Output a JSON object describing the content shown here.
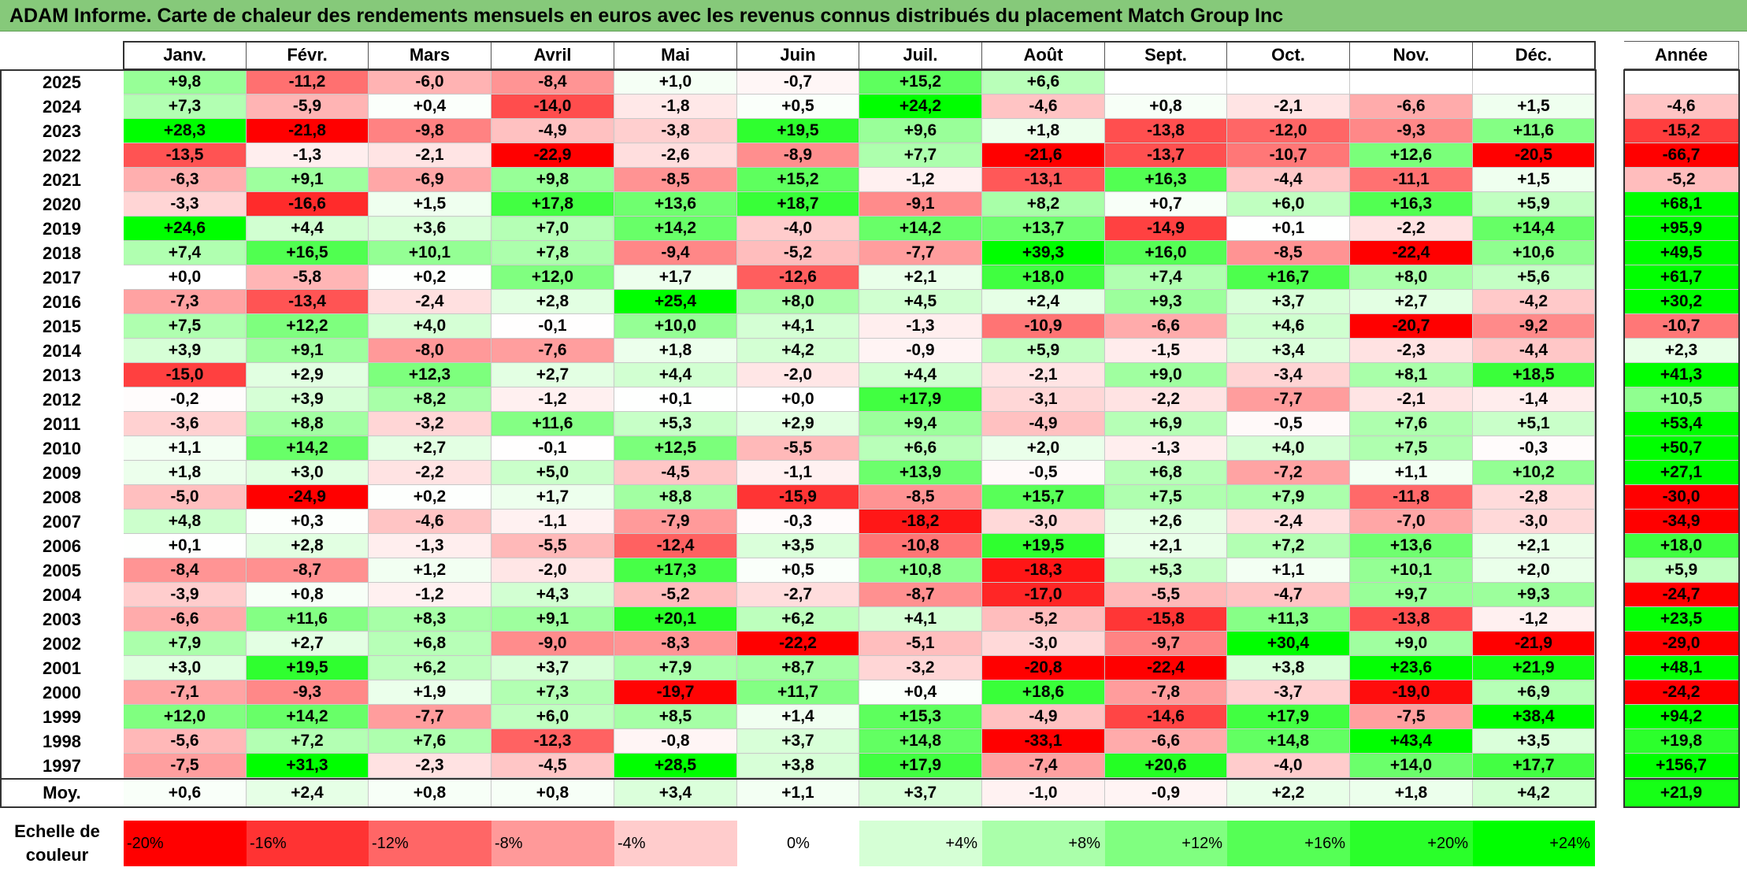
{
  "title": "ADAM Informe. Carte de chaleur des rendements mensuels en euros avec les revenus connus distribués du placement Match Group Inc",
  "chart_data": {
    "type": "heatmap",
    "months": [
      "Janv.",
      "Févr.",
      "Mars",
      "Avril",
      "Mai",
      "Juin",
      "Juil.",
      "Août",
      "Sept.",
      "Oct.",
      "Nov.",
      "Déc."
    ],
    "year_column_label": "Année",
    "average_row_label": "Moy.",
    "rows": [
      {
        "year": "2025",
        "values": [
          "+9,8",
          "-11,2",
          "-6,0",
          "-8,4",
          "+1,0",
          "-0,7",
          "+15,2",
          "+6,6",
          null,
          null,
          null,
          null
        ],
        "annual": null
      },
      {
        "year": "2024",
        "values": [
          "+7,3",
          "-5,9",
          "+0,4",
          "-14,0",
          "-1,8",
          "+0,5",
          "+24,2",
          "-4,6",
          "+0,8",
          "-2,1",
          "-6,6",
          "+1,5"
        ],
        "annual": "-4,6"
      },
      {
        "year": "2023",
        "values": [
          "+28,3",
          "-21,8",
          "-9,8",
          "-4,9",
          "-3,8",
          "+19,5",
          "+9,6",
          "+1,8",
          "-13,8",
          "-12,0",
          "-9,3",
          "+11,6"
        ],
        "annual": "-15,2"
      },
      {
        "year": "2022",
        "values": [
          "-13,5",
          "-1,3",
          "-2,1",
          "-22,9",
          "-2,6",
          "-8,9",
          "+7,7",
          "-21,6",
          "-13,7",
          "-10,7",
          "+12,6",
          "-20,5"
        ],
        "annual": "-66,7"
      },
      {
        "year": "2021",
        "values": [
          "-6,3",
          "+9,1",
          "-6,9",
          "+9,8",
          "-8,5",
          "+15,2",
          "-1,2",
          "-13,1",
          "+16,3",
          "-4,4",
          "-11,1",
          "+1,5"
        ],
        "annual": "-5,2"
      },
      {
        "year": "2020",
        "values": [
          "-3,3",
          "-16,6",
          "+1,5",
          "+17,8",
          "+13,6",
          "+18,7",
          "-9,1",
          "+8,2",
          "+0,7",
          "+6,0",
          "+16,3",
          "+5,9"
        ],
        "annual": "+68,1"
      },
      {
        "year": "2019",
        "values": [
          "+24,6",
          "+4,4",
          "+3,6",
          "+7,0",
          "+14,2",
          "-4,0",
          "+14,2",
          "+13,7",
          "-14,9",
          "+0,1",
          "-2,2",
          "+14,4"
        ],
        "annual": "+95,9"
      },
      {
        "year": "2018",
        "values": [
          "+7,4",
          "+16,5",
          "+10,1",
          "+7,8",
          "-9,4",
          "-5,2",
          "-7,7",
          "+39,3",
          "+16,0",
          "-8,5",
          "-22,4",
          "+10,6"
        ],
        "annual": "+49,5"
      },
      {
        "year": "2017",
        "values": [
          "+0,0",
          "-5,8",
          "+0,2",
          "+12,0",
          "+1,7",
          "-12,6",
          "+2,1",
          "+18,0",
          "+7,4",
          "+16,7",
          "+8,0",
          "+5,6"
        ],
        "annual": "+61,7"
      },
      {
        "year": "2016",
        "values": [
          "-7,3",
          "-13,4",
          "-2,4",
          "+2,8",
          "+25,4",
          "+8,0",
          "+4,5",
          "+2,4",
          "+9,3",
          "+3,7",
          "+2,7",
          "-4,2"
        ],
        "annual": "+30,2"
      },
      {
        "year": "2015",
        "values": [
          "+7,5",
          "+12,2",
          "+4,0",
          "-0,1",
          "+10,0",
          "+4,1",
          "-1,3",
          "-10,9",
          "-6,6",
          "+4,6",
          "-20,7",
          "-9,2"
        ],
        "annual": "-10,7"
      },
      {
        "year": "2014",
        "values": [
          "+3,9",
          "+9,1",
          "-8,0",
          "-7,6",
          "+1,8",
          "+4,2",
          "-0,9",
          "+5,9",
          "-1,5",
          "+3,4",
          "-2,3",
          "-4,4"
        ],
        "annual": "+2,3"
      },
      {
        "year": "2013",
        "values": [
          "-15,0",
          "+2,9",
          "+12,3",
          "+2,7",
          "+4,4",
          "-2,0",
          "+4,4",
          "-2,1",
          "+9,0",
          "-3,4",
          "+8,1",
          "+18,5"
        ],
        "annual": "+41,3"
      },
      {
        "year": "2012",
        "values": [
          "-0,2",
          "+3,9",
          "+8,2",
          "-1,2",
          "+0,1",
          "+0,0",
          "+17,9",
          "-3,1",
          "-2,2",
          "-7,7",
          "-2,1",
          "-1,4"
        ],
        "annual": "+10,5"
      },
      {
        "year": "2011",
        "values": [
          "-3,6",
          "+8,8",
          "-3,2",
          "+11,6",
          "+5,3",
          "+2,9",
          "+9,4",
          "-4,9",
          "+6,9",
          "-0,5",
          "+7,6",
          "+5,1"
        ],
        "annual": "+53,4"
      },
      {
        "year": "2010",
        "values": [
          "+1,1",
          "+14,2",
          "+2,7",
          "-0,1",
          "+12,5",
          "-5,5",
          "+6,6",
          "+2,0",
          "-1,3",
          "+4,0",
          "+7,5",
          "-0,3"
        ],
        "annual": "+50,7"
      },
      {
        "year": "2009",
        "values": [
          "+1,8",
          "+3,0",
          "-2,2",
          "+5,0",
          "-4,5",
          "-1,1",
          "+13,9",
          "-0,5",
          "+6,8",
          "-7,2",
          "+1,1",
          "+10,2"
        ],
        "annual": "+27,1"
      },
      {
        "year": "2008",
        "values": [
          "-5,0",
          "-24,9",
          "+0,2",
          "+1,7",
          "+8,8",
          "-15,9",
          "-8,5",
          "+15,7",
          "+7,5",
          "+7,9",
          "-11,8",
          "-2,8"
        ],
        "annual": "-30,0"
      },
      {
        "year": "2007",
        "values": [
          "+4,8",
          "+0,3",
          "-4,6",
          "-1,1",
          "-7,9",
          "-0,3",
          "-18,2",
          "-3,0",
          "+2,6",
          "-2,4",
          "-7,0",
          "-3,0"
        ],
        "annual": "-34,9"
      },
      {
        "year": "2006",
        "values": [
          "+0,1",
          "+2,8",
          "-1,3",
          "-5,5",
          "-12,4",
          "+3,5",
          "-10,8",
          "+19,5",
          "+2,1",
          "+7,2",
          "+13,6",
          "+2,1"
        ],
        "annual": "+18,0"
      },
      {
        "year": "2005",
        "values": [
          "-8,4",
          "-8,7",
          "+1,2",
          "-2,0",
          "+17,3",
          "+0,5",
          "+10,8",
          "-18,3",
          "+5,3",
          "+1,1",
          "+10,1",
          "+2,0"
        ],
        "annual": "+5,9"
      },
      {
        "year": "2004",
        "values": [
          "-3,9",
          "+0,8",
          "-1,2",
          "+4,3",
          "-5,2",
          "-2,7",
          "-8,7",
          "-17,0",
          "-5,5",
          "-4,7",
          "+9,7",
          "+9,3"
        ],
        "annual": "-24,7"
      },
      {
        "year": "2003",
        "values": [
          "-6,6",
          "+11,6",
          "+8,3",
          "+9,1",
          "+20,1",
          "+6,2",
          "+4,1",
          "-5,2",
          "-15,8",
          "+11,3",
          "-13,8",
          "-1,2"
        ],
        "annual": "+23,5"
      },
      {
        "year": "2002",
        "values": [
          "+7,9",
          "+2,7",
          "+6,8",
          "-9,0",
          "-8,3",
          "-22,2",
          "-5,1",
          "-3,0",
          "-9,7",
          "+30,4",
          "+9,0",
          "-21,9"
        ],
        "annual": "-29,0"
      },
      {
        "year": "2001",
        "values": [
          "+3,0",
          "+19,5",
          "+6,2",
          "+3,7",
          "+7,9",
          "+8,7",
          "-3,2",
          "-20,8",
          "-22,4",
          "+3,8",
          "+23,6",
          "+21,9"
        ],
        "annual": "+48,1"
      },
      {
        "year": "2000",
        "values": [
          "-7,1",
          "-9,3",
          "+1,9",
          "+7,3",
          "-19,7",
          "+11,7",
          "+0,4",
          "+18,6",
          "-7,8",
          "-3,7",
          "-19,0",
          "+6,9"
        ],
        "annual": "-24,2"
      },
      {
        "year": "1999",
        "values": [
          "+12,0",
          "+14,2",
          "-7,7",
          "+6,0",
          "+8,5",
          "+1,4",
          "+15,3",
          "-4,9",
          "-14,6",
          "+17,9",
          "-7,5",
          "+38,4"
        ],
        "annual": "+94,2"
      },
      {
        "year": "1998",
        "values": [
          "-5,6",
          "+7,2",
          "+7,6",
          "-12,3",
          "-0,8",
          "+3,7",
          "+14,8",
          "-33,1",
          "-6,6",
          "+14,8",
          "+43,4",
          "+3,5"
        ],
        "annual": "+19,8"
      },
      {
        "year": "1997",
        "values": [
          "-7,5",
          "+31,3",
          "-2,3",
          "-4,5",
          "+28,5",
          "+3,8",
          "+17,9",
          "-7,4",
          "+20,6",
          "-4,0",
          "+14,0",
          "+17,7"
        ],
        "annual": "+156,7"
      }
    ],
    "average": {
      "values": [
        "+0,6",
        "+2,4",
        "+0,8",
        "+0,8",
        "+3,4",
        "+1,1",
        "+3,7",
        "-1,0",
        "-0,9",
        "+2,2",
        "+1,8",
        "+4,2"
      ],
      "annual": "+21,9"
    },
    "color_scale": {
      "label": "Echelle de couleur",
      "stops": [
        {
          "label": "-20%",
          "value": -20,
          "color": "#ff0000"
        },
        {
          "label": "-16%",
          "value": -16,
          "color": "#ff3333"
        },
        {
          "label": "-12%",
          "value": -12,
          "color": "#ff6666"
        },
        {
          "label": "-8%",
          "value": -8,
          "color": "#ff9999"
        },
        {
          "label": "-4%",
          "value": -4,
          "color": "#ffcccc"
        },
        {
          "label": "0%",
          "value": 0,
          "color": "#ffffff"
        },
        {
          "label": "+4%",
          "value": 4,
          "color": "#d5ffd5"
        },
        {
          "label": "+8%",
          "value": 8,
          "color": "#aaffaa"
        },
        {
          "label": "+12%",
          "value": 12,
          "color": "#80ff80"
        },
        {
          "label": "+16%",
          "value": 16,
          "color": "#55ff55"
        },
        {
          "label": "+20%",
          "value": 20,
          "color": "#2aff2a"
        },
        {
          "label": "+24%",
          "value": 24,
          "color": "#00ff00"
        }
      ]
    }
  }
}
